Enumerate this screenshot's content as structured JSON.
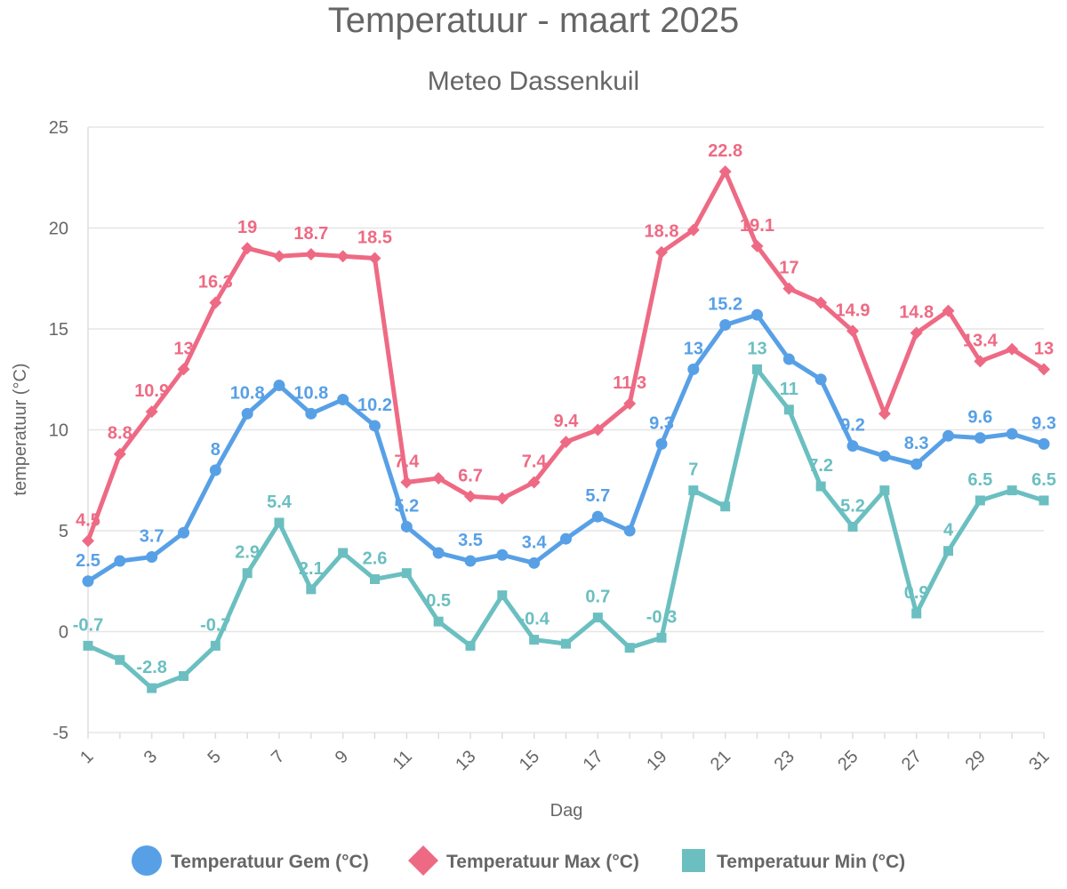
{
  "chart_data": {
    "type": "line",
    "title": "Temperatuur - maart 2025",
    "subtitle": "Meteo Dassenkuil",
    "xlabel": "Dag",
    "ylabel": "temperatuur (°C)",
    "ylim": [
      -5,
      25
    ],
    "yticks": [
      "25",
      "20",
      "15",
      "10",
      "5",
      "0",
      "-5"
    ],
    "x": [
      1,
      2,
      3,
      4,
      5,
      6,
      7,
      8,
      9,
      10,
      11,
      12,
      13,
      14,
      15,
      16,
      17,
      18,
      19,
      20,
      21,
      22,
      23,
      24,
      25,
      26,
      27,
      28,
      29,
      30,
      31
    ],
    "xtick_labels": [
      "1",
      "3",
      "5",
      "7",
      "9",
      "11",
      "13",
      "15",
      "17",
      "19",
      "21",
      "23",
      "25",
      "27",
      "29",
      "31"
    ],
    "grid": true,
    "legend_position": "bottom",
    "series": [
      {
        "name": "Temperatuur Gem (°C)",
        "color": "#58a0e6",
        "marker": "circle",
        "values": [
          2.5,
          3.5,
          3.7,
          4.9,
          8,
          10.8,
          12.2,
          10.8,
          11.5,
          10.2,
          5.2,
          3.9,
          3.5,
          3.8,
          3.4,
          4.6,
          5.7,
          5.0,
          9.3,
          13,
          15.2,
          15.7,
          13.5,
          12.5,
          9.2,
          8.7,
          8.3,
          9.7,
          9.6,
          9.8,
          9.3
        ],
        "labels": [
          "2.5",
          "",
          "3.7",
          "",
          "8",
          "10.8",
          "",
          "10.8",
          "",
          "10.2",
          "5.2",
          "",
          "3.5",
          "",
          "3.4",
          "",
          "5.7",
          "",
          "9.3",
          "13",
          "15.2",
          "",
          "",
          "",
          "9.2",
          "",
          "8.3",
          "",
          "9.6",
          "",
          "9.3"
        ]
      },
      {
        "name": "Temperatuur Max (°C)",
        "color": "#ee6a84",
        "marker": "diamond",
        "values": [
          4.5,
          8.8,
          10.9,
          13,
          16.3,
          19,
          18.6,
          18.7,
          18.6,
          18.5,
          7.4,
          7.6,
          6.7,
          6.6,
          7.4,
          9.4,
          10,
          11.3,
          18.8,
          19.9,
          22.8,
          19.1,
          17,
          16.3,
          14.9,
          10.8,
          14.8,
          15.9,
          13.4,
          14,
          13
        ],
        "labels": [
          "4.5",
          "8.8",
          "10.9",
          "13",
          "16.3",
          "19",
          "",
          "18.7",
          "",
          "18.5",
          "7.4",
          "",
          "6.7",
          "",
          "7.4",
          "9.4",
          "",
          "11.3",
          "18.8",
          "",
          "22.8",
          "19.1",
          "17",
          "",
          "14.9",
          "",
          "14.8",
          "",
          "13.4",
          "",
          "13"
        ]
      },
      {
        "name": "Temperatuur Min (°C)",
        "color": "#6bbfc0",
        "marker": "square",
        "values": [
          -0.7,
          -1.4,
          -2.8,
          -2.2,
          -0.7,
          2.9,
          5.4,
          2.1,
          3.9,
          2.6,
          2.9,
          0.5,
          -0.7,
          1.8,
          -0.4,
          -0.6,
          0.7,
          -0.8,
          -0.3,
          7,
          6.2,
          13,
          11,
          7.2,
          5.2,
          7,
          0.9,
          4,
          6.5,
          7,
          6.5
        ],
        "labels": [
          "-0.7",
          "",
          "-2.8",
          "",
          "-0.7",
          "2.9",
          "5.4",
          "2.1",
          "",
          "2.6",
          "",
          "0.5",
          "",
          "",
          "-0.4",
          "",
          "0.7",
          "",
          "-0.3",
          "7",
          "",
          "13",
          "11",
          "7.2",
          "5.2",
          "",
          "0.9",
          "4",
          "6.5",
          "",
          "6.5"
        ]
      }
    ]
  }
}
